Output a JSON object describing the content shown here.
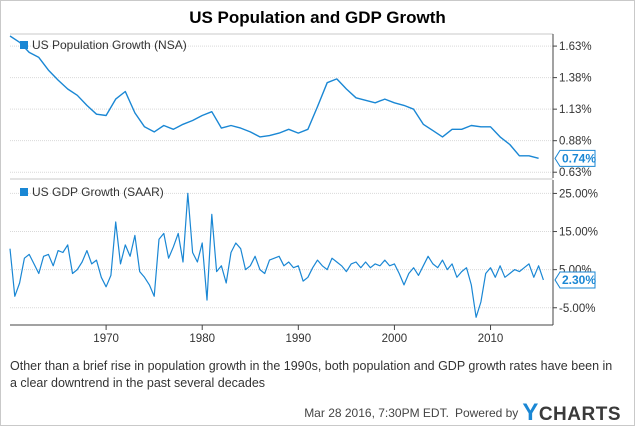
{
  "title": "US Population and GDP Growth",
  "caption": "Other than a brief rise in population growth in the 1990s, both population and GDP growth rates have been in a clear downtrend in the past several decades",
  "footer": {
    "date": "Mar 28 2016, 7:30PM EDT.",
    "powered": "Powered by",
    "brand_y": "Y",
    "brand_rest": "CHARTS"
  },
  "colors": {
    "series": "#1a87d4",
    "grid": "#d9d9d9",
    "axis": "#444444"
  },
  "chart_data": [
    {
      "type": "line",
      "legend": "US Population Growth (NSA)",
      "last_value_label": "0.74%",
      "y_ticks": [
        "1.63%",
        "1.38%",
        "1.13%",
        "0.88%",
        "0.63%"
      ],
      "y_tick_values": [
        1.63,
        1.38,
        1.13,
        0.88,
        0.63
      ],
      "ylim": [
        0.6,
        1.71
      ],
      "xlim": [
        1960,
        2016.5
      ],
      "x": [
        1960,
        1961,
        1962,
        1963,
        1964,
        1965,
        1966,
        1967,
        1968,
        1969,
        1970,
        1971,
        1972,
        1973,
        1974,
        1975,
        1976,
        1977,
        1978,
        1979,
        1980,
        1981,
        1982,
        1983,
        1984,
        1985,
        1986,
        1987,
        1988,
        1989,
        1990,
        1991,
        1992,
        1993,
        1994,
        1995,
        1996,
        1997,
        1998,
        1999,
        2000,
        2001,
        2002,
        2003,
        2004,
        2005,
        2006,
        2007,
        2008,
        2009,
        2010,
        2011,
        2012,
        2013,
        2014,
        2015
      ],
      "y": [
        1.71,
        1.66,
        1.58,
        1.54,
        1.44,
        1.36,
        1.29,
        1.24,
        1.16,
        1.09,
        1.08,
        1.21,
        1.27,
        1.1,
        0.99,
        0.95,
        1.0,
        0.97,
        1.01,
        1.04,
        1.08,
        1.11,
        0.98,
        1.0,
        0.98,
        0.95,
        0.91,
        0.92,
        0.94,
        0.97,
        0.94,
        0.97,
        1.15,
        1.34,
        1.37,
        1.29,
        1.22,
        1.2,
        1.18,
        1.21,
        1.18,
        1.16,
        1.13,
        1.01,
        0.96,
        0.91,
        0.97,
        0.97,
        1.0,
        0.99,
        0.99,
        0.91,
        0.85,
        0.76,
        0.76,
        0.74
      ]
    },
    {
      "type": "line",
      "legend": "US GDP Growth (SAAR)",
      "last_value_label": "2.30%",
      "y_ticks": [
        "25.00%",
        "15.00%",
        "5.00%",
        "-5.00%"
      ],
      "y_tick_values": [
        25,
        15,
        5,
        -5
      ],
      "ylim": [
        -9.0,
        28.0
      ],
      "xlim": [
        1960,
        2016.5
      ],
      "x_ticks": [
        "1970",
        "1980",
        "1990",
        "2000",
        "2010"
      ],
      "x_tick_values": [
        1970,
        1980,
        1990,
        2000,
        2010
      ],
      "x": [
        1960,
        1960.5,
        1961,
        1961.5,
        1962,
        1962.5,
        1963,
        1963.5,
        1964,
        1964.5,
        1965,
        1965.5,
        1966,
        1966.5,
        1967,
        1967.5,
        1968,
        1968.5,
        1969,
        1969.5,
        1970,
        1970.5,
        1971,
        1971.5,
        1972,
        1972.5,
        1973,
        1973.5,
        1974,
        1974.5,
        1975,
        1975.5,
        1976,
        1976.5,
        1977,
        1977.5,
        1978,
        1978.5,
        1979,
        1979.5,
        1980,
        1980.5,
        1981,
        1981.5,
        1982,
        1982.5,
        1983,
        1983.5,
        1984,
        1984.5,
        1985,
        1985.5,
        1986,
        1986.5,
        1987,
        1987.5,
        1988,
        1988.5,
        1989,
        1989.5,
        1990,
        1990.5,
        1991,
        1991.5,
        1992,
        1992.5,
        1993,
        1993.5,
        1994,
        1994.5,
        1995,
        1995.5,
        1996,
        1996.5,
        1997,
        1997.5,
        1998,
        1998.5,
        1999,
        1999.5,
        2000,
        2000.5,
        2001,
        2001.5,
        2002,
        2002.5,
        2003,
        2003.5,
        2004,
        2004.5,
        2005,
        2005.5,
        2006,
        2006.5,
        2007,
        2007.5,
        2008,
        2008.5,
        2009,
        2009.5,
        2010,
        2010.5,
        2011,
        2011.5,
        2012,
        2012.5,
        2013,
        2013.5,
        2014,
        2014.5,
        2015,
        2015.5
      ],
      "y": [
        10.5,
        -2.0,
        1.5,
        8.0,
        9.0,
        6.5,
        4.0,
        8.5,
        9.0,
        6.0,
        10.0,
        9.5,
        11.5,
        4.0,
        5.0,
        7.0,
        10.0,
        6.5,
        7.5,
        3.0,
        0.5,
        3.5,
        17.5,
        6.5,
        11.5,
        8.5,
        14.0,
        4.5,
        3.0,
        1.0,
        -2.0,
        13.0,
        14.5,
        8.0,
        11.0,
        14.5,
        7.0,
        25.0,
        9.5,
        7.0,
        12.0,
        -3.0,
        19.5,
        4.5,
        6.0,
        1.5,
        9.5,
        12.0,
        10.5,
        5.0,
        6.0,
        8.5,
        5.0,
        4.0,
        7.5,
        8.0,
        8.5,
        6.0,
        7.0,
        5.5,
        6.0,
        2.0,
        3.0,
        5.5,
        7.5,
        6.0,
        5.0,
        8.0,
        7.0,
        6.0,
        4.5,
        6.5,
        7.0,
        5.5,
        7.0,
        5.5,
        6.5,
        6.0,
        7.5,
        6.0,
        6.5,
        4.0,
        1.0,
        4.0,
        5.5,
        3.5,
        6.0,
        8.5,
        6.5,
        5.5,
        7.5,
        5.0,
        6.5,
        3.0,
        4.5,
        5.5,
        1.0,
        -7.5,
        -3.5,
        4.0,
        5.5,
        3.0,
        6.0,
        3.0,
        4.0,
        5.0,
        4.5,
        5.5,
        6.5,
        3.0,
        6.0,
        2.3
      ]
    }
  ]
}
